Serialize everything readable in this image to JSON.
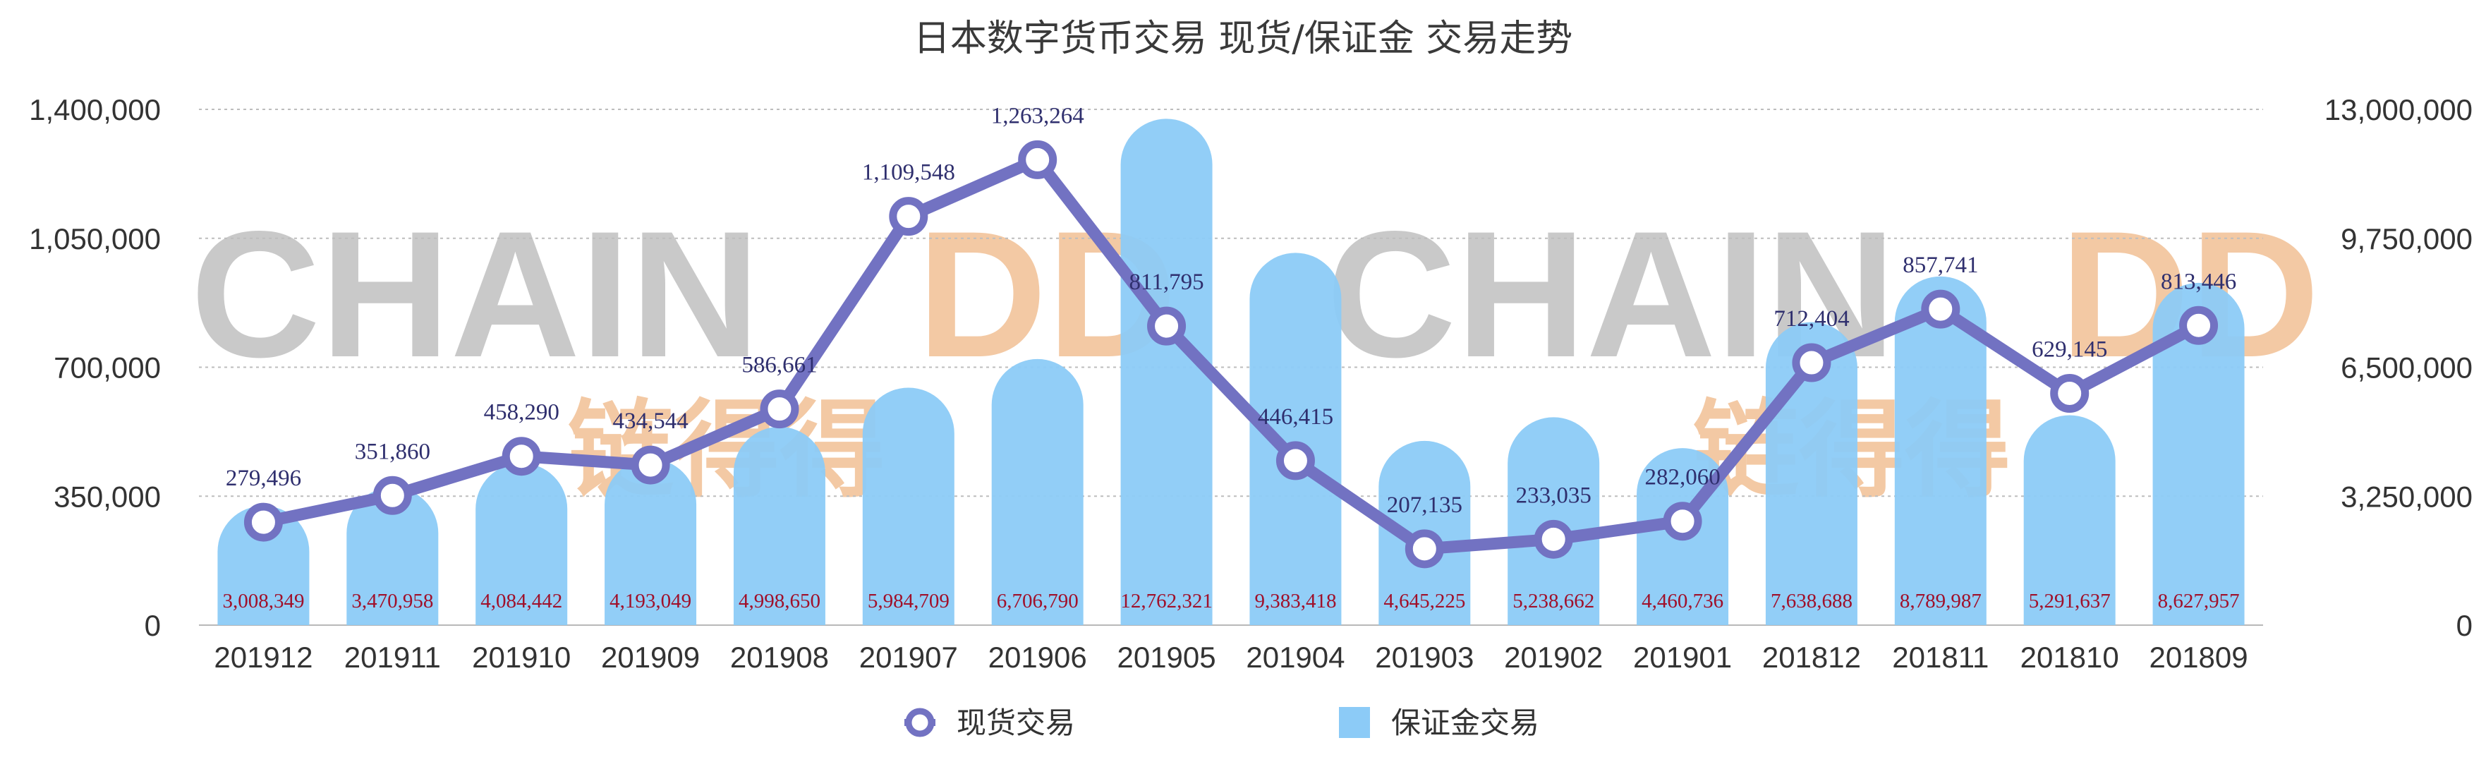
{
  "chart_data": {
    "type": "bar",
    "title": "日本数字货币交易 现货/保证金 交易走势",
    "categories": [
      "201912",
      "201911",
      "201910",
      "201909",
      "201908",
      "201907",
      "201906",
      "201905",
      "201904",
      "201903",
      "201902",
      "201901",
      "201812",
      "201811",
      "201810",
      "201809"
    ],
    "series": [
      {
        "name": "现货交易",
        "type": "line",
        "axis": "left",
        "values": [
          279496,
          351860,
          458290,
          434544,
          586661,
          1109548,
          1263264,
          811795,
          446415,
          207135,
          233035,
          282060,
          712404,
          857741,
          629145,
          813446
        ],
        "labels": [
          "279,496",
          "351,860",
          "458,290",
          "434,544",
          "586,661",
          "1,109,548",
          "1,263,264",
          "811,795",
          "446,415",
          "207,135",
          "233,035",
          "282,060",
          "712,404",
          "857,741",
          "629,145",
          "813,446"
        ]
      },
      {
        "name": "保证金交易",
        "type": "bar",
        "axis": "right",
        "values": [
          3008349,
          3470958,
          4084442,
          4193049,
          4998650,
          5984709,
          6706790,
          12762321,
          9383418,
          4645225,
          5238662,
          4460736,
          7638688,
          8789987,
          5291637,
          8627957
        ],
        "labels": [
          "3,008,349",
          "3,470,958",
          "4,084,442",
          "4,193,049",
          "4,998,650",
          "5,984,709",
          "6,706,790",
          "12,762,321",
          "9,383,418",
          "4,645,225",
          "5,238,662",
          "4,460,736",
          "7,638,688",
          "8,789,987",
          "5,291,637",
          "8,627,957"
        ]
      }
    ],
    "y_left": {
      "range": [
        0,
        1400000
      ],
      "ticks": [
        "0",
        "350,000",
        "700,000",
        "1,050,000",
        "1,400,000"
      ]
    },
    "y_right": {
      "range": [
        0,
        13000000
      ],
      "ticks": [
        "0",
        "3,250,000",
        "6,500,000",
        "9,750,000",
        "13,000,000"
      ]
    },
    "grid": true,
    "legend_position": "bottom",
    "colors": {
      "line": "#7272c2",
      "line_marker_fill": "#ffffff",
      "bar": "#8ccbf7",
      "bar_label": "#a0102a"
    }
  },
  "watermark": {
    "text_left": "CHAIN",
    "text_right": "DD",
    "cn": "链得得",
    "color_gray": "#c9c9c9",
    "color_orange": "#f3c9a4"
  }
}
